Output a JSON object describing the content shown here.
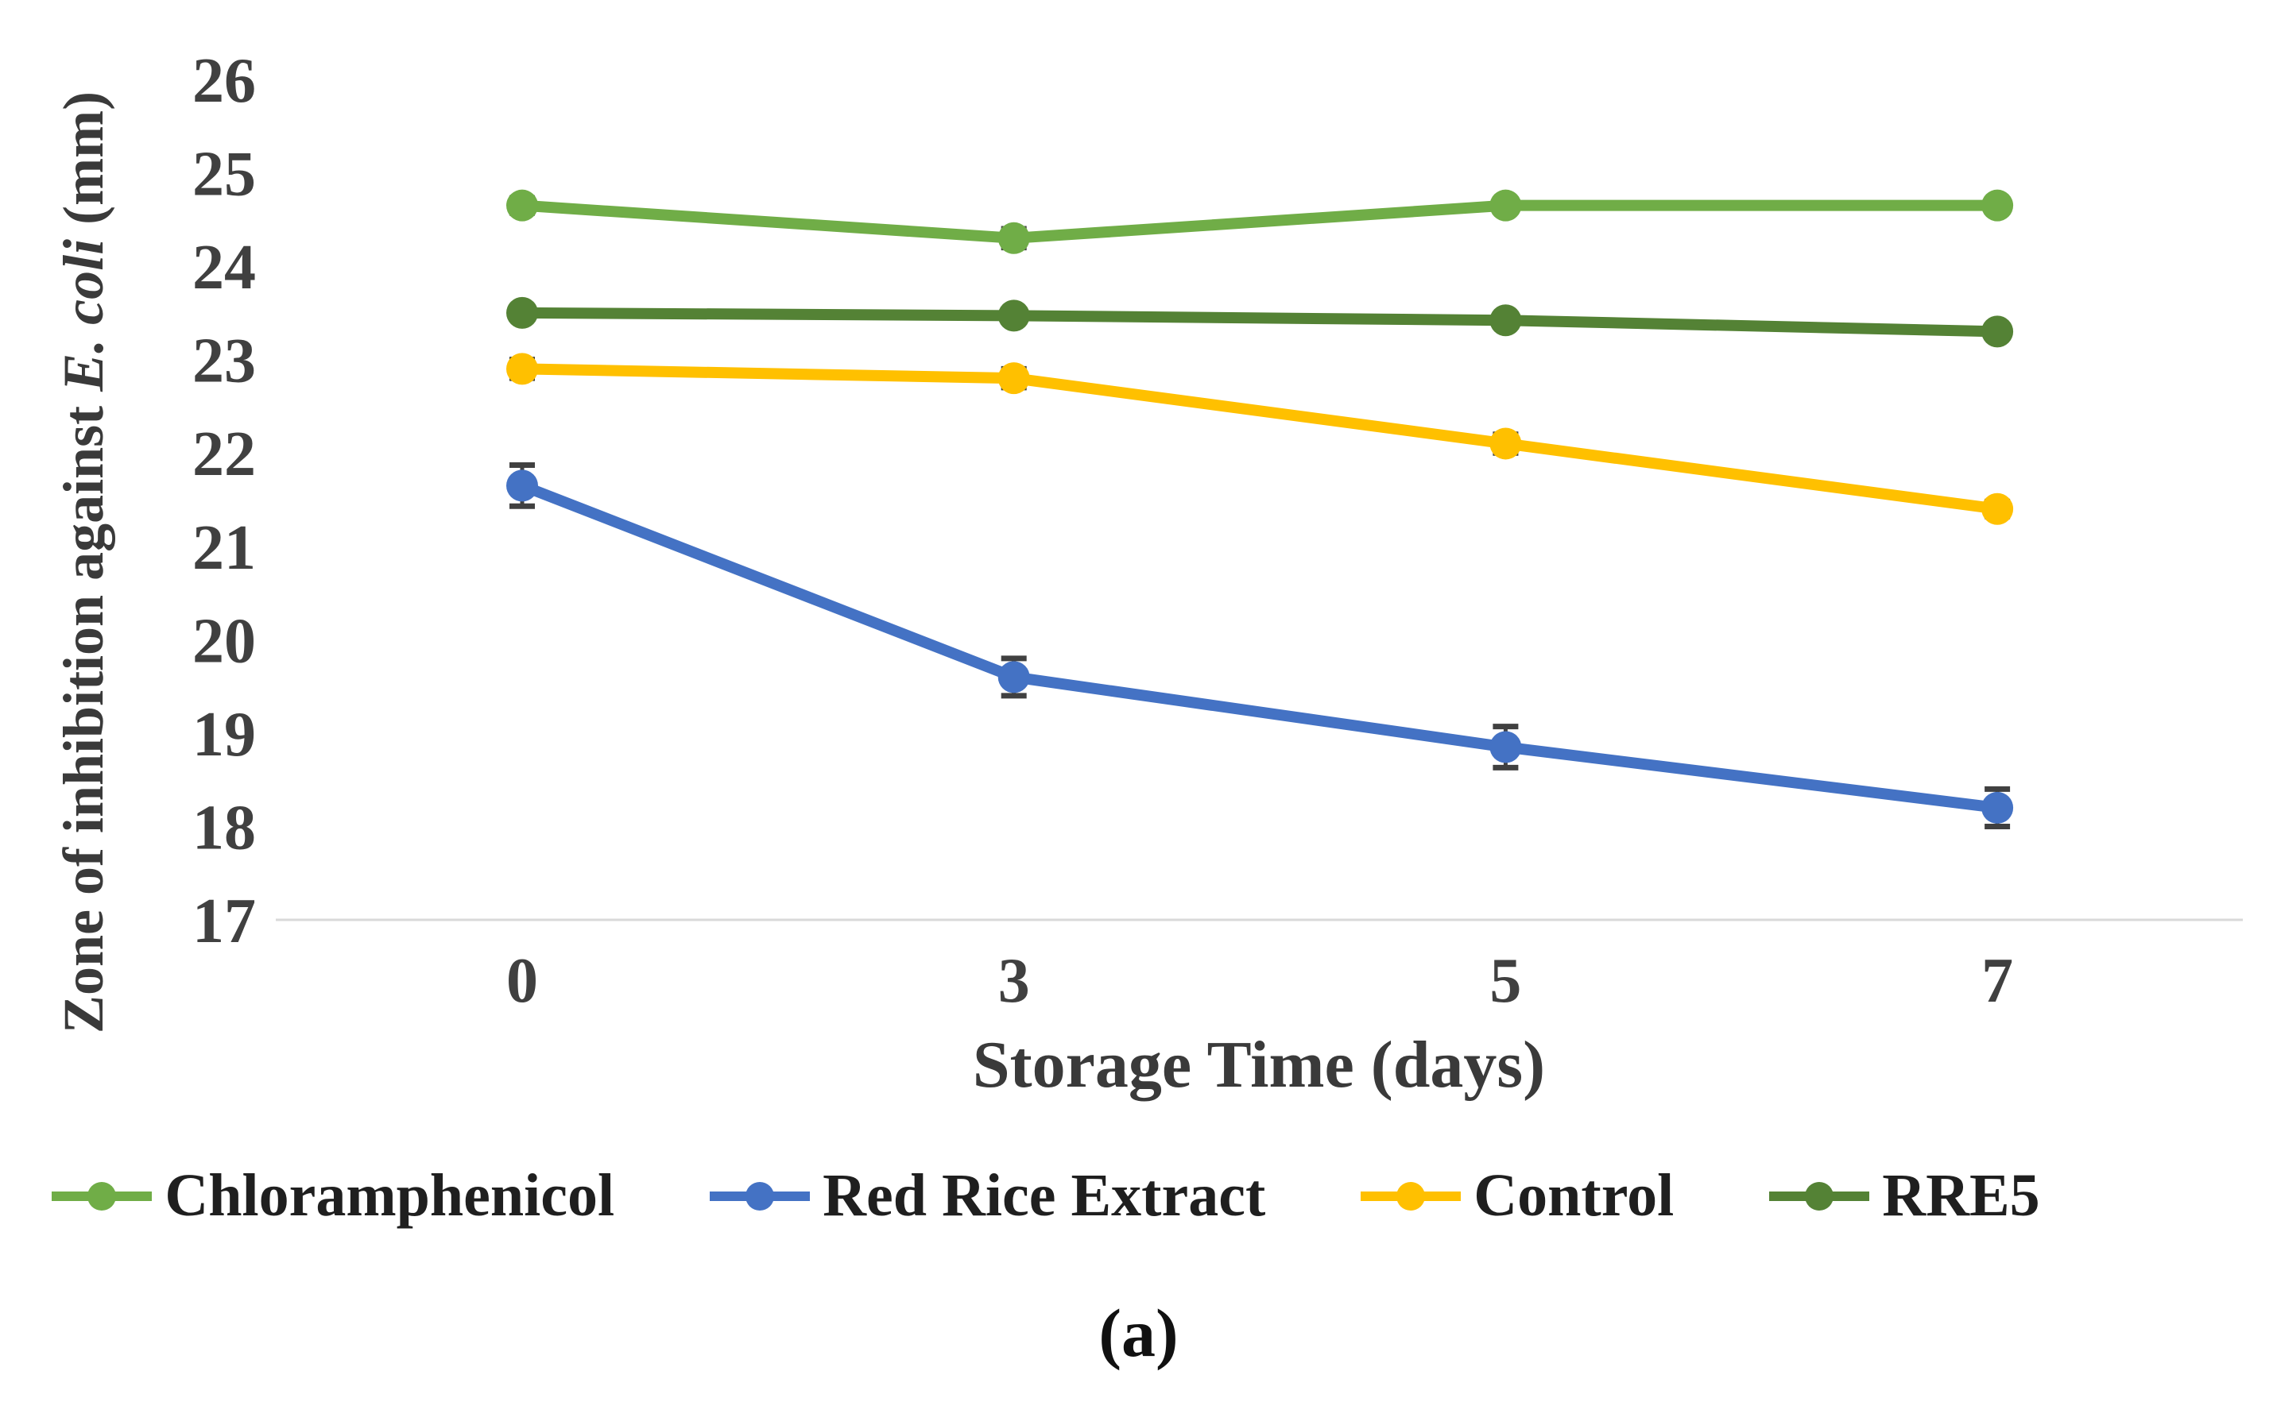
{
  "figure": {
    "caption": "(a)"
  },
  "chart_data": {
    "type": "line",
    "title": "",
    "xlabel": "Storage Time (days)",
    "ylabel": "Zone of inhibition against E. coli (mm)",
    "ylabel_parts": {
      "prefix": "Zone of inhibition against ",
      "italic": "E. coli",
      "suffix": " (mm)"
    },
    "categories": [
      "0",
      "3",
      "5",
      "7"
    ],
    "ylim": [
      17,
      26
    ],
    "yticks": [
      26,
      25,
      24,
      23,
      22,
      21,
      20,
      19,
      18,
      17
    ],
    "grid": false,
    "legend_position": "bottom",
    "error_bars": true,
    "series": [
      {
        "name": "Chloramphenicol",
        "color": "#70AD47",
        "values": [
          24.65,
          24.3,
          24.65,
          24.65
        ],
        "errors": [
          0.08,
          0.1,
          0.06,
          0.06
        ]
      },
      {
        "name": "Red Rice Extract",
        "color": "#4472C4",
        "values": [
          21.65,
          19.6,
          18.85,
          18.2
        ],
        "errors": [
          0.22,
          0.2,
          0.22,
          0.2
        ]
      },
      {
        "name": "Control",
        "color": "#FFC000",
        "values": [
          22.9,
          22.8,
          22.1,
          21.4
        ],
        "errors": [
          0.1,
          0.1,
          0.1,
          0.08
        ]
      },
      {
        "name": "RRE5",
        "color": "#548235",
        "values": [
          23.5,
          23.47,
          23.42,
          23.3
        ],
        "errors": [
          0.04,
          0.04,
          0.04,
          0.04
        ]
      }
    ],
    "style": {
      "axis_line_color": "#D9D9D9",
      "tick_text_color": "#404040",
      "error_bar_color": "#404040"
    }
  }
}
